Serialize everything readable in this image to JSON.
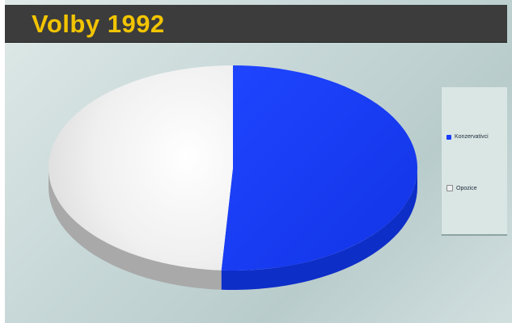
{
  "slide": {
    "title": "Volby 1992"
  },
  "colors": {
    "title": "#f2c400",
    "title_bar": "#3c3c3c"
  },
  "chart_data": {
    "type": "pie",
    "style": "3d",
    "categories": [
      "Konzervativci",
      "Opozice"
    ],
    "values": [
      51,
      49
    ],
    "colors": [
      "#1a3dfa",
      "#efefef"
    ],
    "title": "",
    "legend_position": "right",
    "legend": [
      "Konzervativci",
      "Opozice"
    ]
  }
}
